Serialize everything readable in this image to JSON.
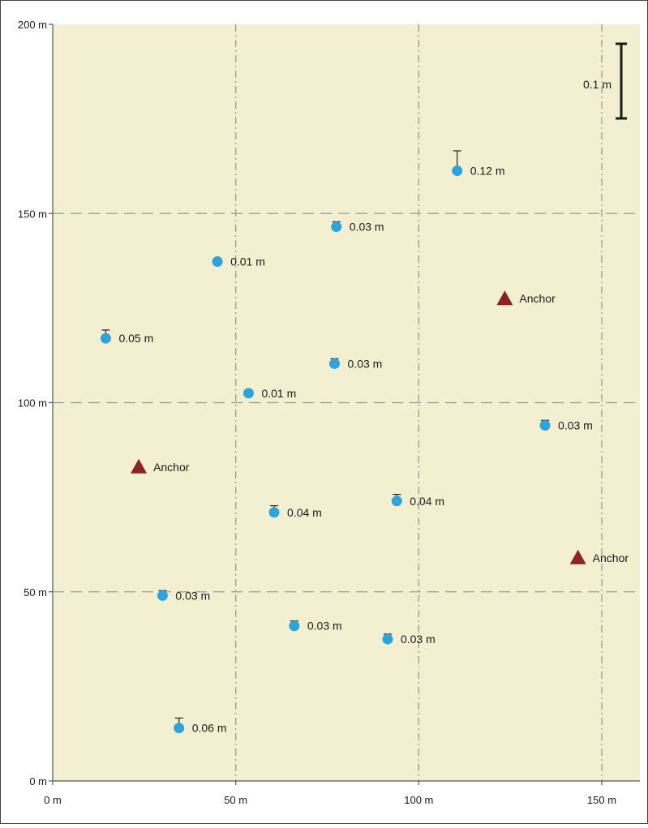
{
  "chart_data": {
    "type": "scatter",
    "xlim": [
      0,
      160
    ],
    "ylim": [
      0,
      200
    ],
    "x_ticks": [
      {
        "value": 0,
        "label": "0 m"
      },
      {
        "value": 50,
        "label": "50 m"
      },
      {
        "value": 100,
        "label": "100 m"
      },
      {
        "value": 150,
        "label": "150 m"
      }
    ],
    "y_ticks": [
      {
        "value": 0,
        "label": "0 m"
      },
      {
        "value": 50,
        "label": "50 m"
      },
      {
        "value": 100,
        "label": "100 m"
      },
      {
        "value": 150,
        "label": "150 m"
      },
      {
        "value": 200,
        "label": "200 m"
      }
    ],
    "grid": true,
    "plot_background": "#f3f0d1",
    "point_color": "#2fa3dc",
    "anchor_color": "#8b2323",
    "points": [
      {
        "x": 110.5,
        "y": 161.3,
        "error": 0.12,
        "label": "0.12 m"
      },
      {
        "x": 77.5,
        "y": 146.5,
        "error": 0.03,
        "label": "0.03 m"
      },
      {
        "x": 45.0,
        "y": 137.3,
        "error": 0.01,
        "label": "0.01 m"
      },
      {
        "x": 14.5,
        "y": 117.0,
        "error": 0.05,
        "label": "0.05 m"
      },
      {
        "x": 77.0,
        "y": 110.3,
        "error": 0.03,
        "label": "0.03 m"
      },
      {
        "x": 53.5,
        "y": 102.5,
        "error": 0.01,
        "label": "0.01 m"
      },
      {
        "x": 134.5,
        "y": 94.0,
        "error": 0.03,
        "label": "0.03 m"
      },
      {
        "x": 60.5,
        "y": 71.0,
        "error": 0.04,
        "label": "0.04 m"
      },
      {
        "x": 94.0,
        "y": 74.0,
        "error": 0.04,
        "label": "0.04 m"
      },
      {
        "x": 30.0,
        "y": 49.0,
        "error": 0.03,
        "label": "0.03 m"
      },
      {
        "x": 66.0,
        "y": 41.0,
        "error": 0.03,
        "label": "0.03 m"
      },
      {
        "x": 91.5,
        "y": 37.5,
        "error": 0.03,
        "label": "0.03 m"
      },
      {
        "x": 34.5,
        "y": 14.0,
        "error": 0.06,
        "label": "0.06 m"
      }
    ],
    "anchors": [
      {
        "x": 23.5,
        "y": 83.0,
        "label": "Anchor"
      },
      {
        "x": 123.5,
        "y": 127.5,
        "label": "Anchor"
      },
      {
        "x": 143.5,
        "y": 59.0,
        "label": "Anchor"
      }
    ],
    "scale_bar": {
      "value": 0.1,
      "label": "0.1 m"
    }
  }
}
